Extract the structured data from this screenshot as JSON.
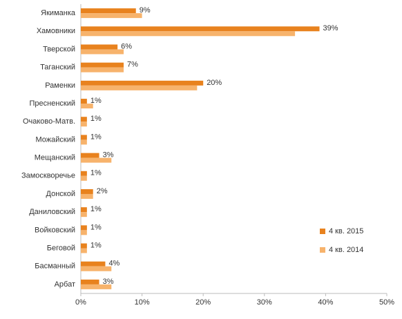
{
  "chart_data": {
    "type": "bar",
    "orientation": "horizontal",
    "categories": [
      "Якиманка",
      "Хамовники",
      "Тверской",
      "Таганский",
      "Раменки",
      "Пресненский",
      "Очаково-Матв.",
      "Можайский",
      "Мещанский",
      "Замоскворечье",
      "Донской",
      "Даниловский",
      "Войковский",
      "Беговой",
      "Басманный",
      "Арбат"
    ],
    "series": [
      {
        "name": "4 кв. 2015",
        "color": "#e8821e",
        "values": [
          9,
          39,
          6,
          7,
          20,
          1,
          1,
          1,
          3,
          1,
          2,
          1,
          1,
          1,
          4,
          3
        ],
        "value_labels": [
          "9%",
          "39%",
          "6%",
          "7%",
          "20%",
          "1%",
          "1%",
          "1%",
          "3%",
          "1%",
          "2%",
          "1%",
          "1%",
          "1%",
          "4%",
          "3%"
        ]
      },
      {
        "name": "4 кв. 2014",
        "color": "#f7b36c",
        "values": [
          10,
          35,
          7,
          7,
          19,
          2,
          1,
          1,
          5,
          1,
          2,
          1,
          1,
          1,
          5,
          5
        ]
      }
    ],
    "xlim": [
      0,
      50
    ],
    "xticks": [
      {
        "value": 0,
        "label": "0%"
      },
      {
        "value": 10,
        "label": "10%"
      },
      {
        "value": 20,
        "label": "20%"
      },
      {
        "value": 30,
        "label": "30%"
      },
      {
        "value": 40,
        "label": "40%"
      },
      {
        "value": 50,
        "label": "50%"
      }
    ],
    "grid": false,
    "legend": "lower right"
  }
}
